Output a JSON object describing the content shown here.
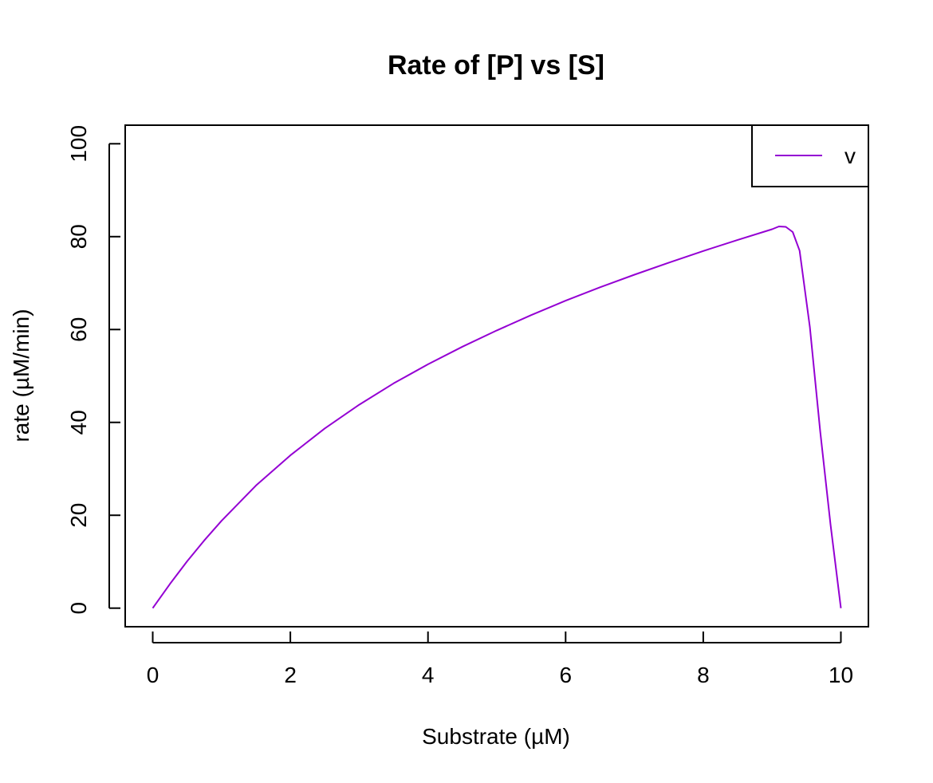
{
  "chart_data": {
    "type": "line",
    "title": "Rate of [P] vs [S]",
    "xlabel": "Substrate (µM)",
    "ylabel": "rate (µM/min)",
    "xlim": [
      -0.4,
      10.4
    ],
    "ylim": [
      -4,
      104
    ],
    "x_ticks": [
      0,
      2,
      4,
      6,
      8,
      10
    ],
    "y_ticks": [
      0,
      20,
      40,
      60,
      80,
      100
    ],
    "grid": false,
    "legend_position": "top-right",
    "series": [
      {
        "name": "v",
        "color": "#9400D3",
        "x": [
          0,
          0.25,
          0.5,
          0.75,
          1,
          1.5,
          2,
          2.5,
          3,
          3.5,
          4,
          4.5,
          5,
          5.5,
          6,
          6.5,
          7,
          7.5,
          8,
          8.5,
          9,
          9.1,
          9.2,
          9.3,
          9.4,
          9.55,
          9.7,
          9.85,
          10
        ],
        "y": [
          0,
          5.2,
          10.1,
          14.6,
          18.8,
          26.4,
          32.9,
          38.7,
          43.8,
          48.4,
          52.5,
          56.3,
          59.8,
          63.1,
          66.2,
          69.1,
          71.8,
          74.4,
          76.9,
          79.3,
          81.6,
          82.2,
          82.1,
          81.0,
          77.0,
          60.5,
          38.0,
          18.0,
          0
        ]
      }
    ]
  }
}
